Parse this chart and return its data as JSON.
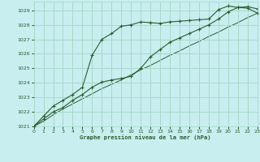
{
  "xlabel": "Graphe pression niveau de la mer (hPa)",
  "bg_color": "#c8eef0",
  "grid_color": "#a8d8c8",
  "line_color": "#2a5e2a",
  "ylim": [
    1021,
    1029.6
  ],
  "xlim": [
    0,
    23
  ],
  "yticks": [
    1021,
    1022,
    1023,
    1024,
    1025,
    1026,
    1027,
    1028,
    1029
  ],
  "xticks": [
    0,
    1,
    2,
    3,
    4,
    5,
    6,
    7,
    8,
    9,
    10,
    11,
    12,
    13,
    14,
    15,
    16,
    17,
    18,
    19,
    20,
    21,
    22,
    23
  ],
  "series1": [
    1021.0,
    1021.7,
    1022.4,
    1022.8,
    1023.2,
    1023.7,
    1025.9,
    1027.0,
    1027.4,
    1027.9,
    1028.0,
    1028.2,
    1028.15,
    1028.1,
    1028.2,
    1028.25,
    1028.3,
    1028.35,
    1028.4,
    1029.05,
    1029.3,
    1029.2,
    1029.15,
    1028.8
  ],
  "series2": [
    1021.0,
    1021.5,
    1022.0,
    1022.3,
    1022.8,
    1023.2,
    1023.7,
    1024.05,
    1024.2,
    1024.3,
    1024.45,
    1025.0,
    1025.8,
    1026.3,
    1026.8,
    1027.1,
    1027.4,
    1027.7,
    1028.0,
    1028.4,
    1028.9,
    1029.2,
    1029.25,
    1029.1
  ],
  "series3": [
    1021.0,
    1021.35,
    1021.8,
    1022.2,
    1022.55,
    1022.9,
    1023.25,
    1023.6,
    1023.9,
    1024.2,
    1024.55,
    1024.9,
    1025.2,
    1025.55,
    1025.9,
    1026.2,
    1026.55,
    1026.85,
    1027.2,
    1027.5,
    1027.85,
    1028.15,
    1028.5,
    1028.8
  ]
}
